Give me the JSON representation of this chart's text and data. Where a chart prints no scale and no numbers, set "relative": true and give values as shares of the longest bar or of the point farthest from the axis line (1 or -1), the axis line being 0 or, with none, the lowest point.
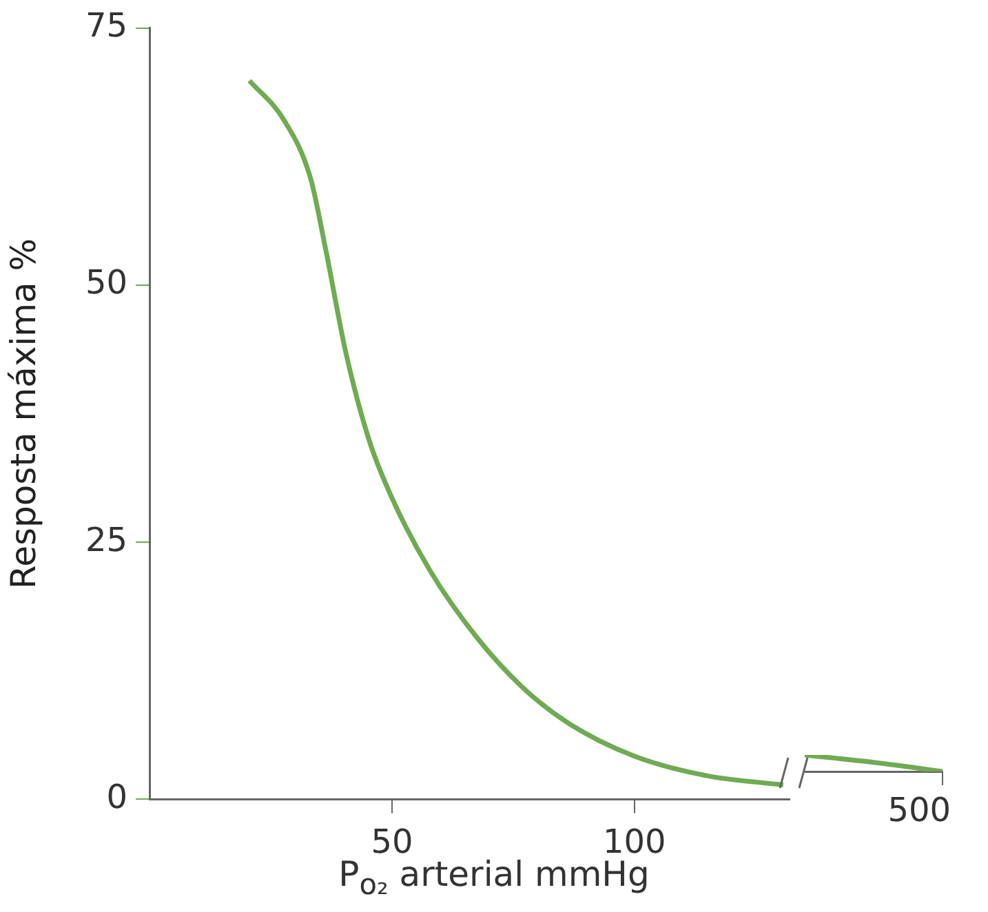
{
  "chart_data": [
    {
      "type": "line",
      "xlabel": "P$_{o₂}$ arterial mmHg",
      "ylabel": "Resposta máxima %",
      "xlim": [
        0,
        132
      ],
      "xticks": [
        50,
        100
      ],
      "ylim": [
        0,
        75
      ],
      "yticks": [
        0,
        25,
        50,
        75
      ],
      "grid": false,
      "series": [
        {
          "color": "#6fab52",
          "x": [
            20.6,
            27.8,
            33.2,
            36.4,
            40.5,
            45.3,
            50,
            57.9,
            67.4,
            76.9,
            86.4,
            100,
            114.9,
            130.7
          ],
          "values": [
            69.9,
            66,
            60.4,
            53.3,
            43.4,
            34.9,
            29.3,
            22.2,
            15.8,
            10.9,
            7.4,
            4.2,
            2.3,
            1.4
          ]
        }
      ]
    },
    {
      "type": "line",
      "relative": true,
      "categories": [
        null,
        null,
        null
      ],
      "annotations": [
        "500"
      ],
      "grid": false,
      "series": [
        {
          "color": "#6fab52",
          "values": [
            1,
            0.55,
            0
          ]
        }
      ]
    }
  ]
}
